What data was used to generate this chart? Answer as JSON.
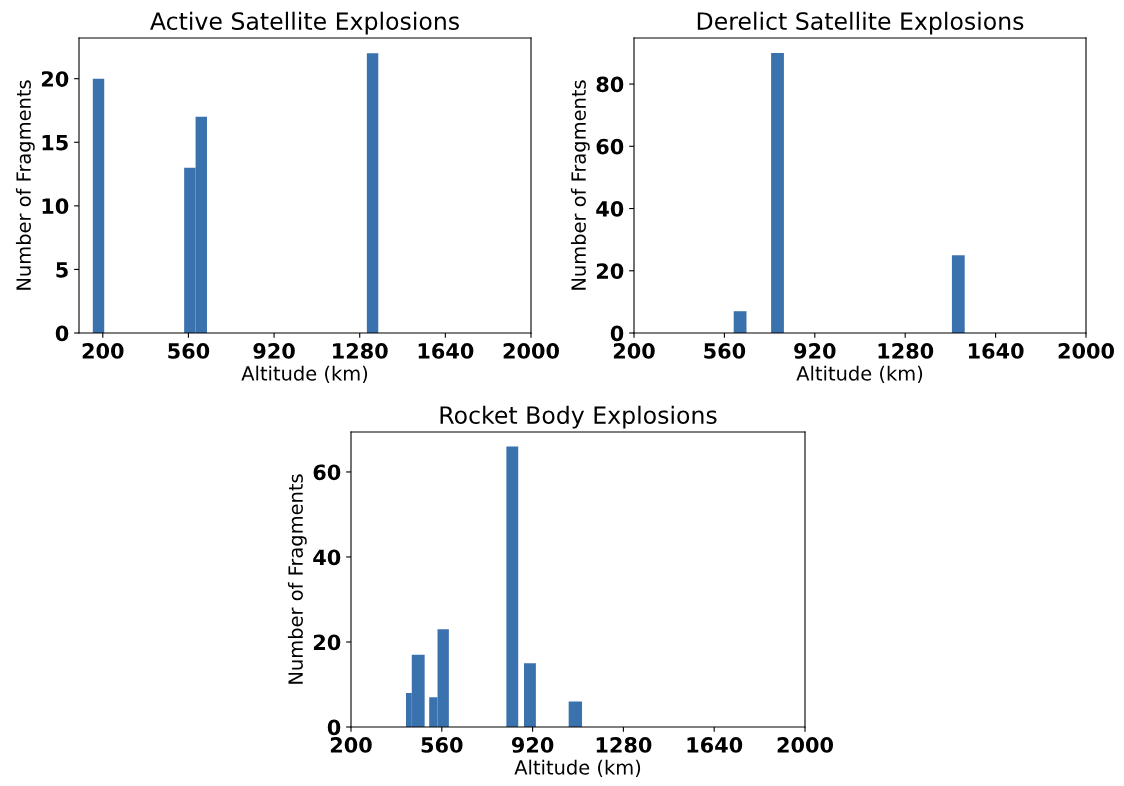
{
  "chart_data": [
    {
      "type": "histogram",
      "title": "Active Satellite Explosions",
      "xlabel": "Altitude (km)",
      "ylabel": "Number of Fragments",
      "color": "#3a72ae",
      "bins": [
        158,
        206,
        542,
        590,
        638,
        1310,
        1358
      ],
      "values": [
        20,
        0,
        13,
        17,
        0,
        22
      ],
      "xlim": [
        100,
        2000
      ],
      "xticks": [
        200,
        560,
        920,
        1280,
        1640,
        2000
      ],
      "ylim": [
        0,
        23.2
      ],
      "yticks": [
        0,
        5,
        10,
        15,
        20
      ],
      "grid": false
    },
    {
      "type": "histogram",
      "title": "Derelict Satellite Explosions",
      "xlabel": "Altitude (km)",
      "ylabel": "Number of Fragments",
      "color": "#3a72ae",
      "bins": [
        597,
        648,
        746,
        797,
        1466,
        1517
      ],
      "values": [
        7,
        0,
        90,
        0,
        25
      ],
      "xlim": [
        200,
        2000
      ],
      "xticks": [
        200,
        560,
        920,
        1280,
        1640,
        2000
      ],
      "ylim": [
        0,
        94.8
      ],
      "yticks": [
        0,
        20,
        40,
        60,
        80
      ],
      "grid": false
    },
    {
      "type": "histogram",
      "title": "Rocket Body Explosions",
      "xlabel": "Altitude (km)",
      "ylabel": "Number of Fragments",
      "color": "#3a72ae",
      "bins": [
        418,
        441,
        492,
        510,
        543,
        588,
        816,
        863,
        886,
        933,
        1063,
        1116
      ],
      "values": [
        8,
        17,
        0,
        7,
        23,
        0,
        66,
        0,
        15,
        0,
        6
      ],
      "xlim": [
        200,
        2000
      ],
      "xticks": [
        200,
        560,
        920,
        1280,
        1640,
        2000
      ],
      "ylim": [
        0,
        69.4
      ],
      "yticks": [
        0,
        20,
        40,
        60
      ],
      "grid": false
    }
  ]
}
